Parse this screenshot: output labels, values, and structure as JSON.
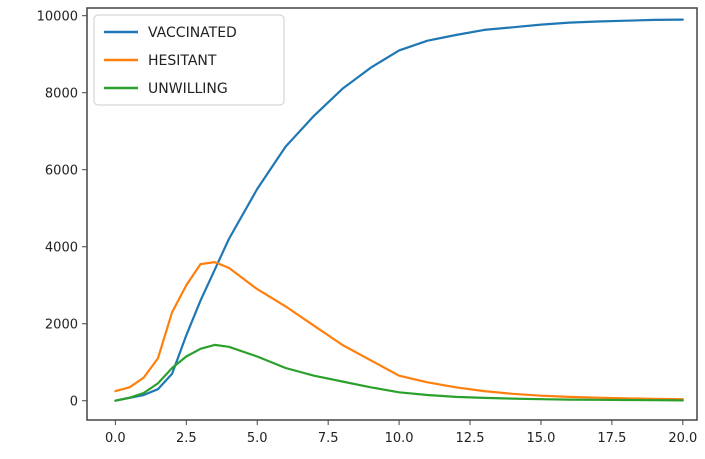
{
  "chart_data": {
    "type": "line",
    "xlim": [
      -1,
      20.5
    ],
    "ylim": [
      -500,
      10200
    ],
    "x_ticks": [
      0.0,
      2.5,
      5.0,
      7.5,
      10.0,
      12.5,
      15.0,
      17.5,
      20.0
    ],
    "x_tick_labels": [
      "0.0",
      "2.5",
      "5.0",
      "7.5",
      "10.0",
      "12.5",
      "15.0",
      "17.5",
      "20.0"
    ],
    "y_ticks": [
      0,
      2000,
      4000,
      6000,
      8000,
      10000
    ],
    "y_tick_labels": [
      "0",
      "2000",
      "4000",
      "6000",
      "8000",
      "10000"
    ],
    "grid": false,
    "legend_position": "top-left",
    "series": [
      {
        "name": "VACCINATED",
        "color": "#1f77b4",
        "points": [
          [
            0,
            0
          ],
          [
            1,
            150
          ],
          [
            1.5,
            300
          ],
          [
            2,
            700
          ],
          [
            2.5,
            1700
          ],
          [
            3,
            2600
          ],
          [
            3.5,
            3400
          ],
          [
            4,
            4200
          ],
          [
            5,
            5500
          ],
          [
            6,
            6600
          ],
          [
            7,
            7400
          ],
          [
            8,
            8100
          ],
          [
            9,
            8650
          ],
          [
            10,
            9100
          ],
          [
            11,
            9350
          ],
          [
            12,
            9500
          ],
          [
            13,
            9630
          ],
          [
            14,
            9700
          ],
          [
            15,
            9770
          ],
          [
            16,
            9820
          ],
          [
            17,
            9850
          ],
          [
            18,
            9870
          ],
          [
            19,
            9890
          ],
          [
            20,
            9900
          ]
        ]
      },
      {
        "name": "HESITANT",
        "color": "#ff7f0e",
        "points": [
          [
            0,
            250
          ],
          [
            0.5,
            350
          ],
          [
            1,
            600
          ],
          [
            1.5,
            1100
          ],
          [
            2,
            2300
          ],
          [
            2.5,
            3000
          ],
          [
            3,
            3550
          ],
          [
            3.5,
            3600
          ],
          [
            4,
            3450
          ],
          [
            5,
            2900
          ],
          [
            6,
            2450
          ],
          [
            7,
            1950
          ],
          [
            8,
            1450
          ],
          [
            9,
            1050
          ],
          [
            10,
            650
          ],
          [
            11,
            480
          ],
          [
            12,
            350
          ],
          [
            13,
            250
          ],
          [
            14,
            180
          ],
          [
            15,
            130
          ],
          [
            16,
            100
          ],
          [
            17,
            80
          ],
          [
            18,
            60
          ],
          [
            19,
            50
          ],
          [
            20,
            40
          ]
        ]
      },
      {
        "name": "UNWILLING",
        "color": "#2ca02c",
        "points": [
          [
            0,
            0
          ],
          [
            0.5,
            80
          ],
          [
            1,
            200
          ],
          [
            1.5,
            450
          ],
          [
            2,
            850
          ],
          [
            2.5,
            1150
          ],
          [
            3,
            1350
          ],
          [
            3.5,
            1450
          ],
          [
            4,
            1400
          ],
          [
            5,
            1150
          ],
          [
            6,
            850
          ],
          [
            7,
            650
          ],
          [
            8,
            500
          ],
          [
            9,
            350
          ],
          [
            10,
            220
          ],
          [
            11,
            150
          ],
          [
            12,
            100
          ],
          [
            13,
            75
          ],
          [
            14,
            55
          ],
          [
            15,
            40
          ],
          [
            16,
            30
          ],
          [
            17,
            25
          ],
          [
            18,
            20
          ],
          [
            19,
            15
          ],
          [
            20,
            10
          ]
        ]
      }
    ]
  }
}
